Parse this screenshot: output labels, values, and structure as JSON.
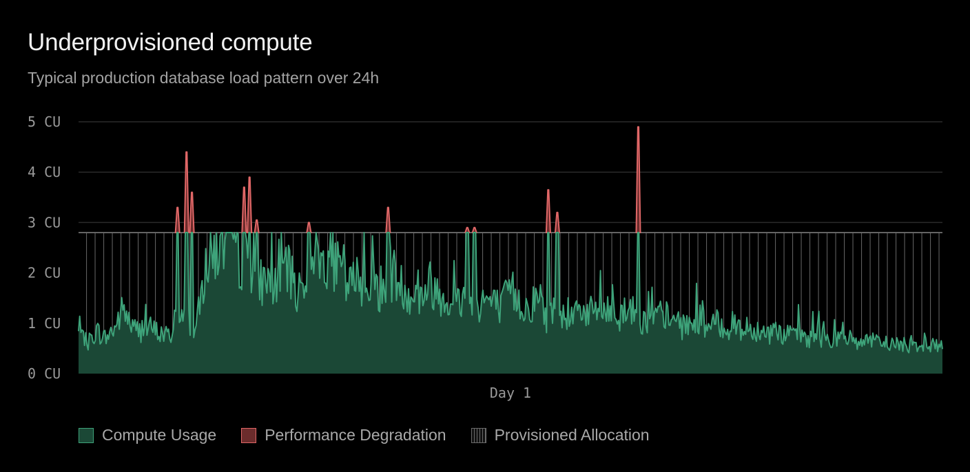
{
  "header": {
    "title": "Underprovisioned compute",
    "subtitle": "Typical production database load pattern over 24h"
  },
  "colors": {
    "background": "#000000",
    "usage_line": "#3ea37a",
    "usage_fill": "#1b4836",
    "degradation": "#e06767",
    "degradation_fill": "#6b2c2c",
    "provisioned": "#6b6b6b",
    "grid": "#2a2a2a",
    "tick_text": "#9a9a9a"
  },
  "legend": [
    {
      "label": "Compute Usage",
      "icon": "green-square-swatch"
    },
    {
      "label": "Performance Degradation",
      "icon": "red-square-swatch"
    },
    {
      "label": "Provisioned Allocation",
      "icon": "hatched-square-swatch"
    }
  ],
  "chart_data": {
    "type": "area",
    "title": "Underprovisioned compute",
    "subtitle": "Typical production database load pattern over 24h",
    "xlabel": "",
    "ylabel": "",
    "x_tick_labels": [
      "Day 1"
    ],
    "y_tick_labels": [
      "0 CU",
      "1 CU",
      "2 CU",
      "3 CU",
      "4 CU",
      "5 CU"
    ],
    "ylim": [
      0,
      5
    ],
    "xlim": [
      0,
      24
    ],
    "grid": true,
    "legend_position": "bottom-left",
    "provisioned_cu": 2.8,
    "series": [
      {
        "name": "Compute Usage",
        "x": [
          0,
          0.25,
          0.5,
          0.75,
          1,
          1.25,
          1.5,
          1.75,
          2,
          2.25,
          2.5,
          2.75,
          3,
          3.25,
          3.5,
          3.75,
          4,
          4.25,
          4.5,
          4.75,
          5,
          5.25,
          5.5,
          5.75,
          6,
          6.25,
          6.5,
          6.75,
          7,
          7.25,
          7.5,
          7.75,
          8,
          8.25,
          8.5,
          8.75,
          9,
          9.25,
          9.5,
          9.75,
          10,
          10.25,
          10.5,
          10.75,
          11,
          11.25,
          11.5,
          11.75,
          12,
          12.25,
          12.5,
          12.75,
          13,
          13.25,
          13.5,
          13.75,
          14,
          14.25,
          14.5,
          14.75,
          15,
          15.25,
          15.5,
          15.75,
          16,
          16.25,
          16.5,
          16.75,
          17,
          17.25,
          17.5,
          17.75,
          18,
          18.25,
          18.5,
          18.75,
          19,
          19.25,
          19.5,
          19.75,
          20,
          20.25,
          20.5,
          20.75,
          21,
          21.25,
          21.5,
          21.75,
          22,
          22.25,
          22.5,
          22.75,
          23,
          23.25,
          23.5,
          23.75,
          24
        ],
        "values": [
          0.8,
          0.6,
          0.85,
          0.7,
          0.9,
          1.3,
          0.9,
          0.85,
          0.9,
          0.8,
          0.75,
          0.9,
          1.2,
          0.8,
          2.0,
          2.4,
          2.6,
          2.7,
          2.2,
          2.3,
          1.8,
          1.9,
          1.7,
          2.2,
          1.6,
          1.8,
          2.6,
          2.2,
          2.4,
          2.0,
          1.7,
          1.9,
          1.8,
          1.8,
          1.5,
          2.0,
          1.7,
          1.6,
          1.5,
          1.8,
          1.6,
          1.5,
          1.4,
          1.5,
          1.3,
          1.5,
          1.4,
          1.3,
          1.7,
          1.4,
          1.3,
          1.5,
          1.1,
          1.4,
          1.2,
          1.1,
          1.3,
          1.2,
          1.3,
          1.2,
          1.1,
          1.4,
          1.1,
          1.0,
          1.1,
          1.2,
          1.0,
          0.9,
          1.0,
          1.1,
          0.9,
          1.0,
          0.9,
          1.0,
          0.8,
          0.9,
          0.85,
          0.8,
          0.8,
          0.75,
          0.8,
          0.7,
          0.75,
          0.7,
          0.7,
          0.65,
          0.7,
          0.6,
          0.65,
          0.6,
          0.6,
          0.6,
          0.55,
          0.6,
          0.55,
          0.55,
          0.6
        ]
      },
      {
        "name": "Performance Degradation",
        "x": [
          2.75,
          3.0,
          3.15,
          4.6,
          4.75,
          4.95,
          6.4,
          8.6,
          10.8,
          11.0,
          13.05,
          13.3,
          15.55
        ],
        "values": [
          3.3,
          4.4,
          3.6,
          3.7,
          3.9,
          3.05,
          3.0,
          3.3,
          2.9,
          2.9,
          3.65,
          3.2,
          4.9
        ]
      }
    ]
  }
}
